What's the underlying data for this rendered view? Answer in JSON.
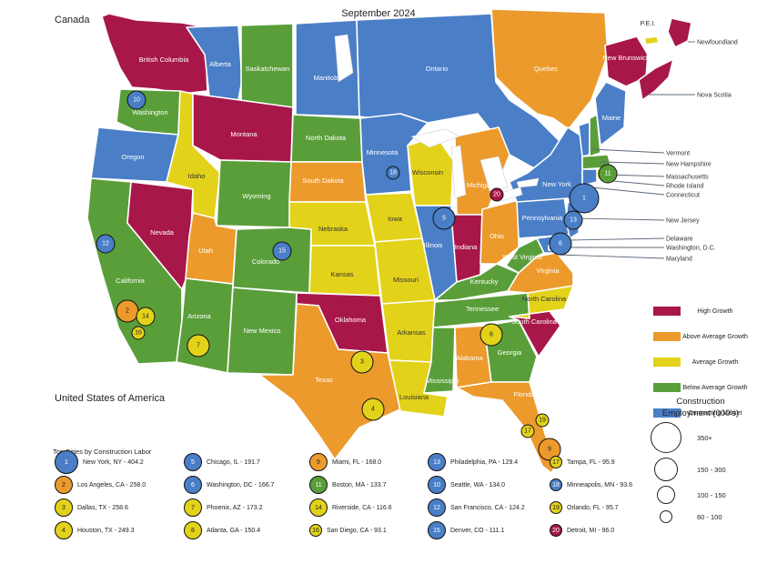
{
  "title": "September 2024",
  "labels": {
    "canada": "Canada",
    "usa": "United States of America",
    "top_cities": "Top Cities by Construction Labor",
    "size_title_1": "Construction",
    "size_title_2": "Employment (000's)"
  },
  "colors": {
    "high": "#A8174A",
    "above": "#EC9A2C",
    "average": "#E3D21A",
    "below": "#5A9E3A",
    "contracting": "#4A7EC7"
  },
  "legend": [
    {
      "key": "high",
      "label": "High Growth"
    },
    {
      "key": "above",
      "label": "Above Average Growth"
    },
    {
      "key": "average",
      "label": "Average Growth"
    },
    {
      "key": "below",
      "label": "Below Average Growth"
    },
    {
      "key": "contracting",
      "label": "Contracting Market"
    }
  ],
  "size_legend": [
    "350+",
    "150 - 300",
    "100 - 150",
    "60 - 100"
  ],
  "regions": {
    "british_columbia": {
      "name": "British Columbia",
      "class": "high"
    },
    "alberta": {
      "name": "Alberta",
      "class": "contracting"
    },
    "saskatchewan": {
      "name": "Saskatchewan",
      "class": "below"
    },
    "manitoba": {
      "name": "Manitoba",
      "class": "contracting"
    },
    "ontario": {
      "name": "Ontario",
      "class": "contracting"
    },
    "quebec": {
      "name": "Quebec",
      "class": "above"
    },
    "new_brunswick": {
      "name": "New Brunswick",
      "class": "high"
    },
    "nova_scotia": {
      "name": "Nova Scotia",
      "class": "high"
    },
    "newfoundland": {
      "name": "Newfoundland",
      "class": "high"
    },
    "pei": {
      "name": "P.E.I.",
      "class": "average"
    },
    "washington": {
      "name": "Washington",
      "class": "below"
    },
    "oregon": {
      "name": "Oregon",
      "class": "contracting"
    },
    "california": {
      "name": "California",
      "class": "below"
    },
    "nevada": {
      "name": "Nevada",
      "class": "high"
    },
    "idaho": {
      "name": "Idaho",
      "class": "average"
    },
    "montana": {
      "name": "Montana",
      "class": "high"
    },
    "wyoming": {
      "name": "Wyoming",
      "class": "below"
    },
    "utah": {
      "name": "Utah",
      "class": "above"
    },
    "arizona": {
      "name": "Arizona",
      "class": "below"
    },
    "colorado": {
      "name": "Colorado",
      "class": "below"
    },
    "new_mexico": {
      "name": "New Mexico",
      "class": "below"
    },
    "north_dakota": {
      "name": "North Dakota",
      "class": "below"
    },
    "south_dakota": {
      "name": "South Dakota",
      "class": "above"
    },
    "nebraska": {
      "name": "Nebraska",
      "class": "average"
    },
    "kansas": {
      "name": "Kansas",
      "class": "average"
    },
    "oklahoma": {
      "name": "Oklahoma",
      "class": "high"
    },
    "texas": {
      "name": "Texas",
      "class": "above"
    },
    "minnesota": {
      "name": "Minnesota",
      "class": "contracting"
    },
    "iowa": {
      "name": "Iowa",
      "class": "average"
    },
    "missouri": {
      "name": "Missouri",
      "class": "average"
    },
    "arkansas": {
      "name": "Arkansas",
      "class": "average"
    },
    "louisiana": {
      "name": "Louisiana",
      "class": "average"
    },
    "wisconsin": {
      "name": "Wisconsin",
      "class": "average"
    },
    "illinois": {
      "name": "Illinois",
      "class": "contracting"
    },
    "michigan": {
      "name": "Michigan",
      "class": "above"
    },
    "indiana": {
      "name": "Indiana",
      "class": "high"
    },
    "ohio": {
      "name": "Ohio",
      "class": "above"
    },
    "kentucky": {
      "name": "Kentucky",
      "class": "below"
    },
    "tennessee": {
      "name": "Tennessee",
      "class": "below"
    },
    "mississippi": {
      "name": "Mississippi",
      "class": "below"
    },
    "alabama": {
      "name": "Alabama",
      "class": "above"
    },
    "georgia": {
      "name": "Georgia",
      "class": "below"
    },
    "florida": {
      "name": "Florida",
      "class": "above"
    },
    "south_carolina": {
      "name": "South Carolina",
      "class": "high"
    },
    "north_carolina": {
      "name": "North Carolina",
      "class": "average"
    },
    "virginia": {
      "name": "Virginia",
      "class": "above"
    },
    "west_virginia": {
      "name": "West Virginia",
      "class": "below"
    },
    "pennsylvania": {
      "name": "Pennsylvania",
      "class": "contracting"
    },
    "new_york": {
      "name": "New York",
      "class": "contracting"
    },
    "vermont": {
      "name": "Vermont",
      "class": "contracting"
    },
    "new_hampshire": {
      "name": "New Hampshire",
      "class": "below"
    },
    "maine": {
      "name": "Maine",
      "class": "contracting"
    },
    "massachusetts": {
      "name": "Massachusetts",
      "class": "below"
    },
    "rhode_island": {
      "name": "Rhode Island",
      "class": "average"
    },
    "connecticut": {
      "name": "Connecticut",
      "class": "contracting"
    },
    "new_jersey": {
      "name": "New Jersey",
      "class": "contracting"
    },
    "delaware": {
      "name": "Delaware",
      "class": "average"
    },
    "washington_dc": {
      "name": "Washington, D.C.",
      "class": "contracting"
    },
    "maryland": {
      "name": "Maryland",
      "class": "contracting"
    }
  },
  "callouts": [
    "Newfoundland",
    "Nova Scotia",
    "Vermont",
    "New Hampshire",
    "Massachusetts",
    "Rhode Island",
    "Connecticut",
    "New Jersey",
    "Delaware",
    "Washington, D.C.",
    "Maryland"
  ],
  "cities": [
    {
      "rank": "1",
      "label": "New York, NY - 404.2",
      "class": "contracting",
      "size": 4
    },
    {
      "rank": "2",
      "label": "Los Angeles, CA - 258.0",
      "class": "above",
      "size": 3
    },
    {
      "rank": "3",
      "label": "Dallas, TX - 258.6",
      "class": "average",
      "size": 3
    },
    {
      "rank": "4",
      "label": "Houston, TX - 249.3",
      "class": "average",
      "size": 3
    },
    {
      "rank": "5",
      "label": "Chicago, IL - 191.7",
      "class": "contracting",
      "size": 3
    },
    {
      "rank": "6",
      "label": "Washington, DC - 166.7",
      "class": "contracting",
      "size": 3
    },
    {
      "rank": "7",
      "label": "Phoenix, AZ - 173.2",
      "class": "average",
      "size": 3
    },
    {
      "rank": "8",
      "label": "Atlanta, GA - 150.4",
      "class": "average",
      "size": 3
    },
    {
      "rank": "9",
      "label": "Miami, FL - 168.0",
      "class": "above",
      "size": 3
    },
    {
      "rank": "10",
      "label": "Seattle, WA - 134.0",
      "class": "contracting",
      "size": 2
    },
    {
      "rank": "11",
      "label": "Boston, MA - 133.7",
      "class": "below",
      "size": 2
    },
    {
      "rank": "12",
      "label": "San Francisco, CA - 124.2",
      "class": "contracting",
      "size": 2
    },
    {
      "rank": "13",
      "label": "Philadelphia, PA - 129.4",
      "class": "contracting",
      "size": 2
    },
    {
      "rank": "14",
      "label": "Riverside, CA - 116.6",
      "class": "average",
      "size": 2
    },
    {
      "rank": "15",
      "label": "Denver, CO - 111.1",
      "class": "contracting",
      "size": 2
    },
    {
      "rank": "16",
      "label": "San Diego, CA - 93.1",
      "class": "average",
      "size": 1
    },
    {
      "rank": "17",
      "label": "Tampa, FL - 95.9",
      "class": "average",
      "size": 1
    },
    {
      "rank": "18",
      "label": "Minneapolis, MN - 93.6",
      "class": "contracting",
      "size": 1
    },
    {
      "rank": "19",
      "label": "Orlando, FL - 95.7",
      "class": "average",
      "size": 1
    },
    {
      "rank": "20",
      "label": "Detroit, MI - 96.0",
      "class": "high",
      "size": 1
    }
  ]
}
